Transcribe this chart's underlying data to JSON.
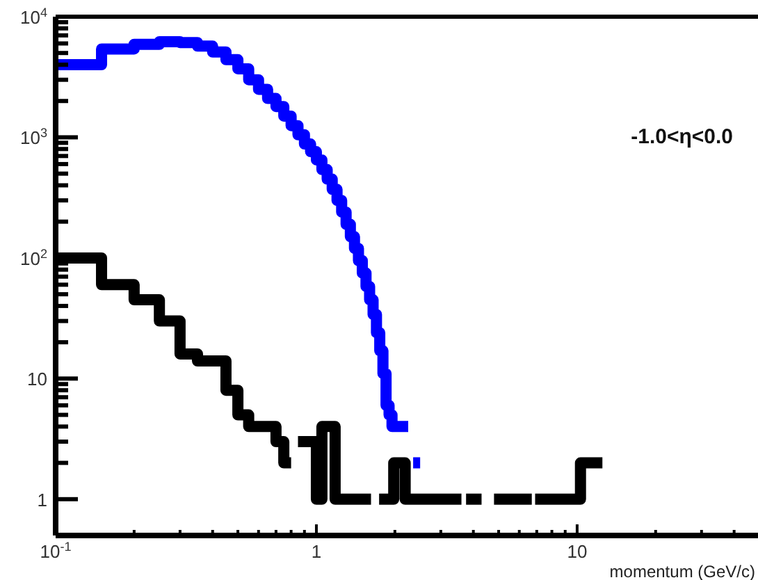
{
  "chart_data": {
    "type": "step",
    "xlabel": "momentum (GeV/c)",
    "log": "xy",
    "grid": false,
    "line_style": "solid",
    "annotations": [
      "-1.0<η<0.0"
    ],
    "xlim": [
      0.1,
      50
    ],
    "xticks": [
      {
        "value": 0.1,
        "label": "10$^{-1}$"
      },
      {
        "value": 0.2,
        "label": null
      },
      {
        "value": 0.3,
        "label": null
      },
      {
        "value": 0.4,
        "label": null
      },
      {
        "value": 0.5,
        "label": null
      },
      {
        "value": 0.6,
        "label": null
      },
      {
        "value": 0.7,
        "label": null
      },
      {
        "value": 0.8,
        "label": null
      },
      {
        "value": 0.9,
        "label": null
      },
      {
        "value": 1,
        "label": "1"
      },
      {
        "value": 2,
        "label": null
      },
      {
        "value": 3,
        "label": null
      },
      {
        "value": 4,
        "label": null
      },
      {
        "value": 5,
        "label": null
      },
      {
        "value": 6,
        "label": null
      },
      {
        "value": 7,
        "label": null
      },
      {
        "value": 8,
        "label": null
      },
      {
        "value": 9,
        "label": null
      },
      {
        "value": 10,
        "label": "10"
      },
      {
        "value": 20,
        "label": null
      },
      {
        "value": 30,
        "label": null
      },
      {
        "value": 40,
        "label": null
      }
    ],
    "ylim": [
      0.5,
      10000
    ],
    "yticks": [
      {
        "value": 1,
        "label": "1"
      },
      {
        "value": 2,
        "label": null
      },
      {
        "value": 3,
        "label": null
      },
      {
        "value": 4,
        "label": null
      },
      {
        "value": 5,
        "label": null
      },
      {
        "value": 6,
        "label": null
      },
      {
        "value": 7,
        "label": null
      },
      {
        "value": 8,
        "label": null
      },
      {
        "value": 9,
        "label": null
      },
      {
        "value": 10,
        "label": "10"
      },
      {
        "value": 20,
        "label": null
      },
      {
        "value": 30,
        "label": null
      },
      {
        "value": 40,
        "label": null
      },
      {
        "value": 50,
        "label": null
      },
      {
        "value": 60,
        "label": null
      },
      {
        "value": 70,
        "label": null
      },
      {
        "value": 80,
        "label": null
      },
      {
        "value": 90,
        "label": null
      },
      {
        "value": 100,
        "label": "10$^{2}$"
      },
      {
        "value": 200,
        "label": null
      },
      {
        "value": 300,
        "label": null
      },
      {
        "value": 400,
        "label": null
      },
      {
        "value": 500,
        "label": null
      },
      {
        "value": 600,
        "label": null
      },
      {
        "value": 700,
        "label": null
      },
      {
        "value": 800,
        "label": null
      },
      {
        "value": 900,
        "label": null
      },
      {
        "value": 1000,
        "label": "10$^{3}$"
      },
      {
        "value": 2000,
        "label": null
      },
      {
        "value": 3000,
        "label": null
      },
      {
        "value": 4000,
        "label": null
      },
      {
        "value": 5000,
        "label": null
      },
      {
        "value": 6000,
        "label": null
      },
      {
        "value": 7000,
        "label": null
      },
      {
        "value": 8000,
        "label": null
      },
      {
        "value": 9000,
        "label": null
      },
      {
        "value": 10000,
        "label": "10$^{4}$"
      }
    ],
    "series": [
      {
        "color": "#0000ff",
        "x": [
          0.1,
          0.15,
          0.2,
          0.25,
          0.3,
          0.35,
          0.4,
          0.45,
          0.5,
          0.55,
          0.6,
          0.65,
          0.7,
          0.75,
          0.8,
          0.85,
          0.9,
          0.95,
          1.0,
          1.05,
          1.1,
          1.15,
          1.2,
          1.25,
          1.3,
          1.35,
          1.4,
          1.45,
          1.5,
          1.55,
          1.6,
          1.65,
          1.7,
          1.75,
          1.8,
          1.85,
          1.9,
          1.95,
          2.0,
          2.05,
          2.1,
          2.15,
          2.2,
          2.25,
          2.35,
          2.5
        ],
        "values": [
          4000,
          5400,
          5900,
          6200,
          6100,
          5700,
          5100,
          4400,
          3700,
          3000,
          2500,
          2100,
          1800,
          1500,
          1250,
          1050,
          880,
          760,
          650,
          540,
          450,
          370,
          300,
          240,
          190,
          150,
          120,
          95,
          75,
          58,
          45,
          34,
          24,
          17,
          11,
          6,
          5,
          4,
          4,
          4,
          4,
          4,
          4,
          null,
          2,
          2
        ]
      },
      {
        "color": "#000000",
        "x": [
          0.1,
          0.15,
          0.2,
          0.25,
          0.3,
          0.35,
          0.4,
          0.45,
          0.5,
          0.55,
          0.6,
          0.65,
          0.7,
          0.75,
          0.8,
          0.85,
          1.0,
          1.05,
          1.18,
          1.62,
          1.74,
          1.98,
          2.19,
          3.6,
          3.75,
          4.3,
          4.8,
          6.7,
          6.9,
          10.3,
          12.5
        ],
        "values": [
          100,
          60,
          45,
          30,
          16,
          14,
          14,
          8,
          5,
          4,
          4,
          4,
          3,
          2,
          null,
          3,
          1,
          4,
          1,
          null,
          1,
          2,
          1,
          null,
          1,
          null,
          1,
          null,
          1,
          2,
          2
        ]
      }
    ]
  }
}
